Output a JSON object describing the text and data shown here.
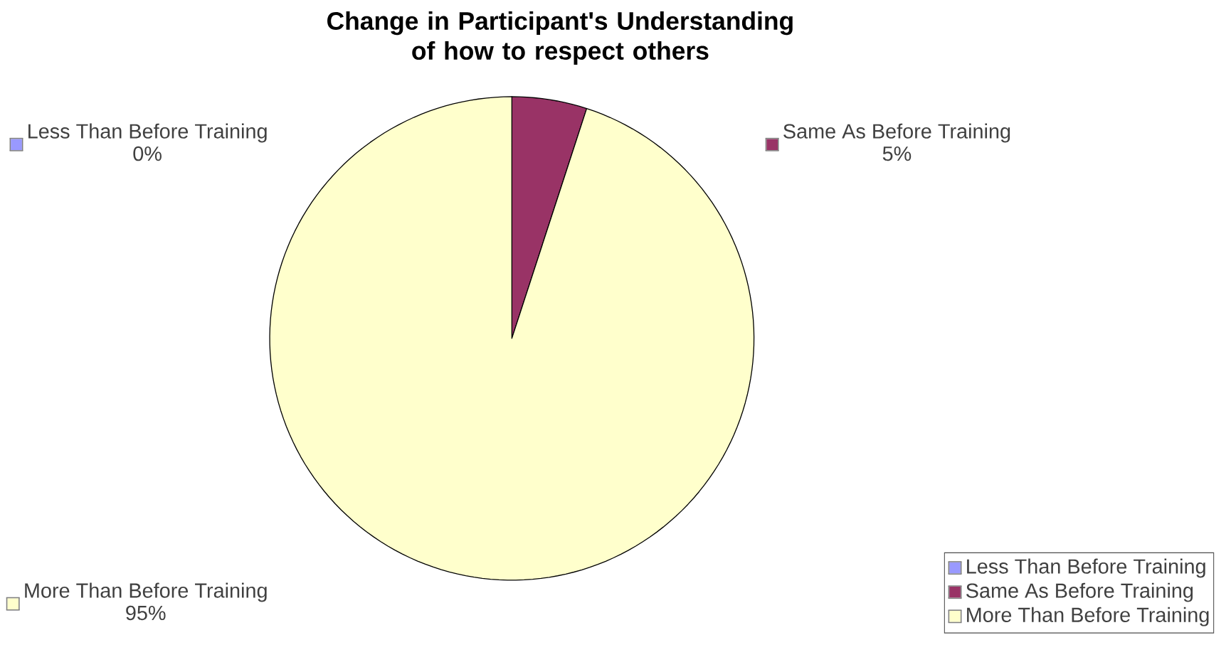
{
  "chart_data": {
    "type": "pie",
    "title": "Change in Participant's Understanding of how to respect others",
    "categories": [
      "Less Than Before Training",
      "Same As Before Training",
      "More Than Before Training"
    ],
    "values": [
      0,
      5,
      95
    ],
    "colors": [
      "#9999ff",
      "#993366",
      "#ffffcc"
    ],
    "value_labels": [
      "0%",
      "5%",
      "95%"
    ],
    "legend": "bottom right"
  }
}
